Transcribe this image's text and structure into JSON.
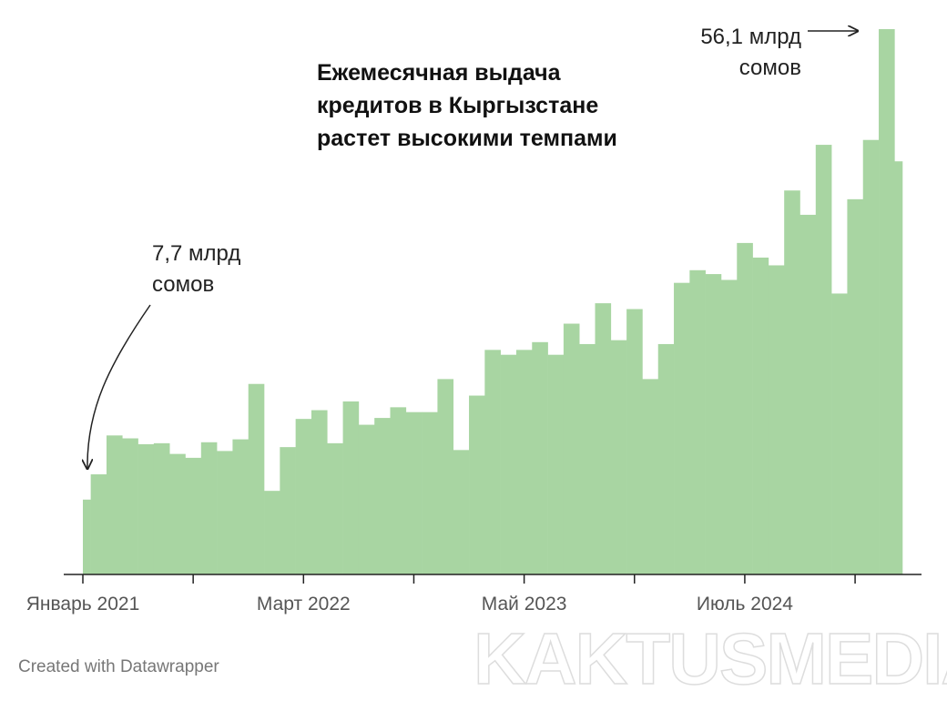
{
  "chart_data": {
    "type": "bar",
    "title": "Ежемесячная выдача кредитов в Кыргызстане растет высокими темпами",
    "annotations": [
      "7,7 млрд сомов",
      "56,1 млрд сомов"
    ],
    "footer": "Created with Datawrapper",
    "watermark": "KAKTUSMEDIA",
    "color": "#a8d5a2",
    "categories": [
      "Январь 2021",
      null,
      null,
      null,
      null,
      null,
      null,
      null,
      null,
      null,
      null,
      null,
      null,
      null,
      "Март 2022",
      null,
      null,
      null,
      null,
      null,
      null,
      null,
      null,
      null,
      null,
      null,
      null,
      null,
      "Май 2023",
      null,
      null,
      null,
      null,
      null,
      null,
      null,
      null,
      null,
      null,
      null,
      null,
      null,
      "Июль 2024",
      null,
      null,
      null,
      null,
      null,
      null,
      null,
      null,
      null,
      null
    ],
    "values": [
      7.7,
      10.3,
      14.3,
      14.0,
      13.4,
      13.5,
      12.4,
      12.0,
      13.6,
      12.7,
      13.9,
      19.6,
      8.6,
      13.1,
      16.0,
      16.9,
      13.5,
      17.8,
      15.4,
      16.1,
      17.2,
      16.7,
      16.7,
      20.1,
      12.8,
      18.4,
      23.1,
      22.6,
      23.1,
      23.9,
      22.6,
      25.8,
      23.7,
      27.9,
      24.1,
      27.3,
      20.1,
      23.7,
      30.0,
      31.3,
      30.9,
      30.3,
      34.1,
      32.6,
      31.8,
      39.5,
      37.0,
      44.2,
      28.9,
      38.6,
      44.7,
      56.1,
      42.5
    ],
    "ylim": [
      0,
      56.1
    ]
  }
}
